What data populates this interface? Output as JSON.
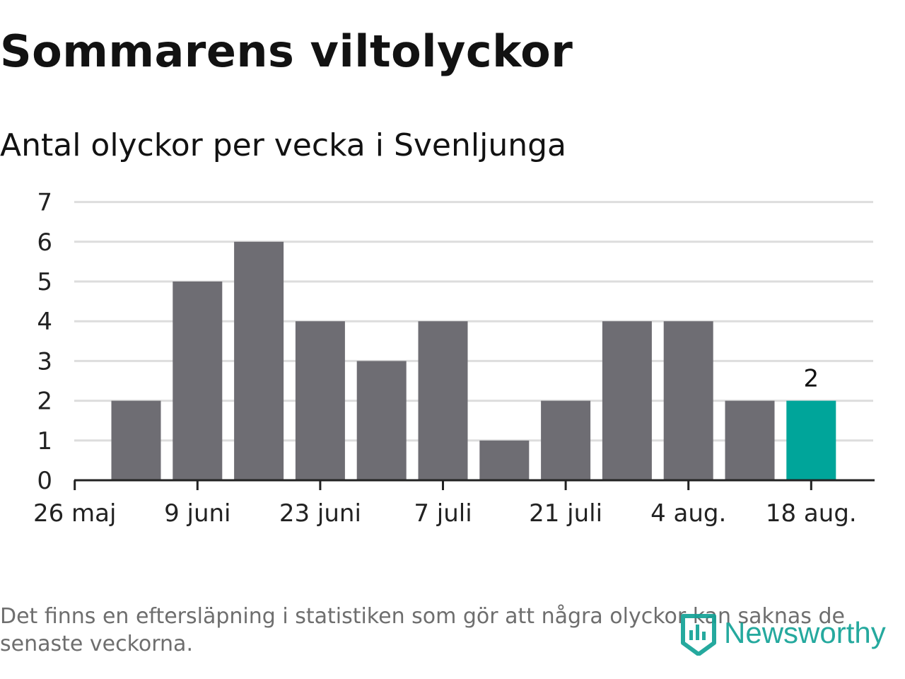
{
  "title": "Sommarens viltolyckor",
  "subtitle": "Antal olyckor per vecka i Svenljunga",
  "footnote": "Det finns en eftersläpning i statistiken som gör att några olyckor kan saknas de senaste veckorna.",
  "brand": {
    "name": "Newsworthy",
    "icon": "newsworthy-logo-icon"
  },
  "colors": {
    "bar": "#6e6d73",
    "highlight": "#00a59a",
    "grid": "#dddddd",
    "axis": "#222222",
    "text": "#222222"
  },
  "chart_data": {
    "type": "bar",
    "title": "Sommarens viltolyckor",
    "subtitle": "Antal olyckor per vecka i Svenljunga",
    "xlabel": "",
    "ylabel": "",
    "ylim": [
      0,
      7
    ],
    "yticks": [
      0,
      1,
      2,
      3,
      4,
      5,
      6,
      7
    ],
    "grid": true,
    "legend": "none",
    "xtick_labels": [
      "26 maj",
      "9 juni",
      "23 juni",
      "7 juli",
      "21 juli",
      "4 aug.",
      "18 aug."
    ],
    "categories": [
      "2 juni",
      "9 juni",
      "16 juni",
      "23 juni",
      "30 juni",
      "7 juli",
      "14 juli",
      "21 juli",
      "28 juli",
      "4 aug.",
      "11 aug.",
      "18 aug."
    ],
    "values": [
      2,
      5,
      6,
      4,
      3,
      4,
      1,
      2,
      4,
      4,
      2,
      2
    ],
    "highlight_index": 11,
    "data_labels": [
      {
        "index": 11,
        "text": "2"
      }
    ]
  }
}
